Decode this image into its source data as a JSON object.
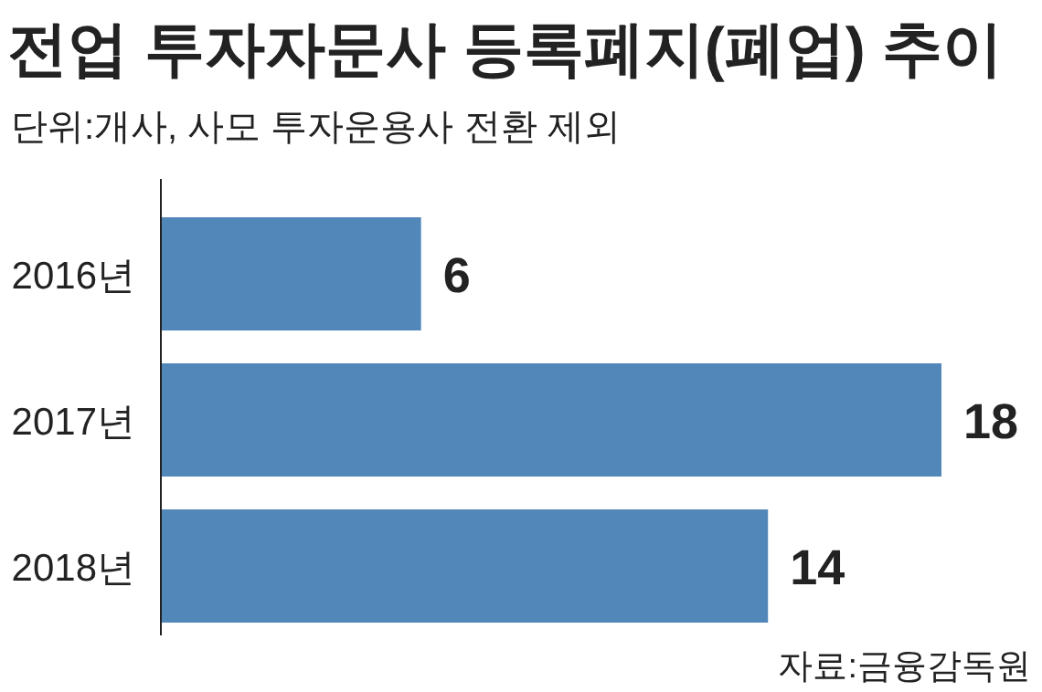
{
  "chart_data": {
    "type": "bar",
    "orientation": "horizontal",
    "title": "전업 투자자문사 등록폐지(폐업) 추이",
    "subtitle": "단위:개사, 사모 투자운용사 전환 제외",
    "categories": [
      "2016년",
      "2017년",
      "2018년"
    ],
    "values": [
      6,
      18,
      14
    ],
    "color": "#5287b9",
    "data_labels": true,
    "annotations": [
      "자료:금융감독원"
    ]
  }
}
